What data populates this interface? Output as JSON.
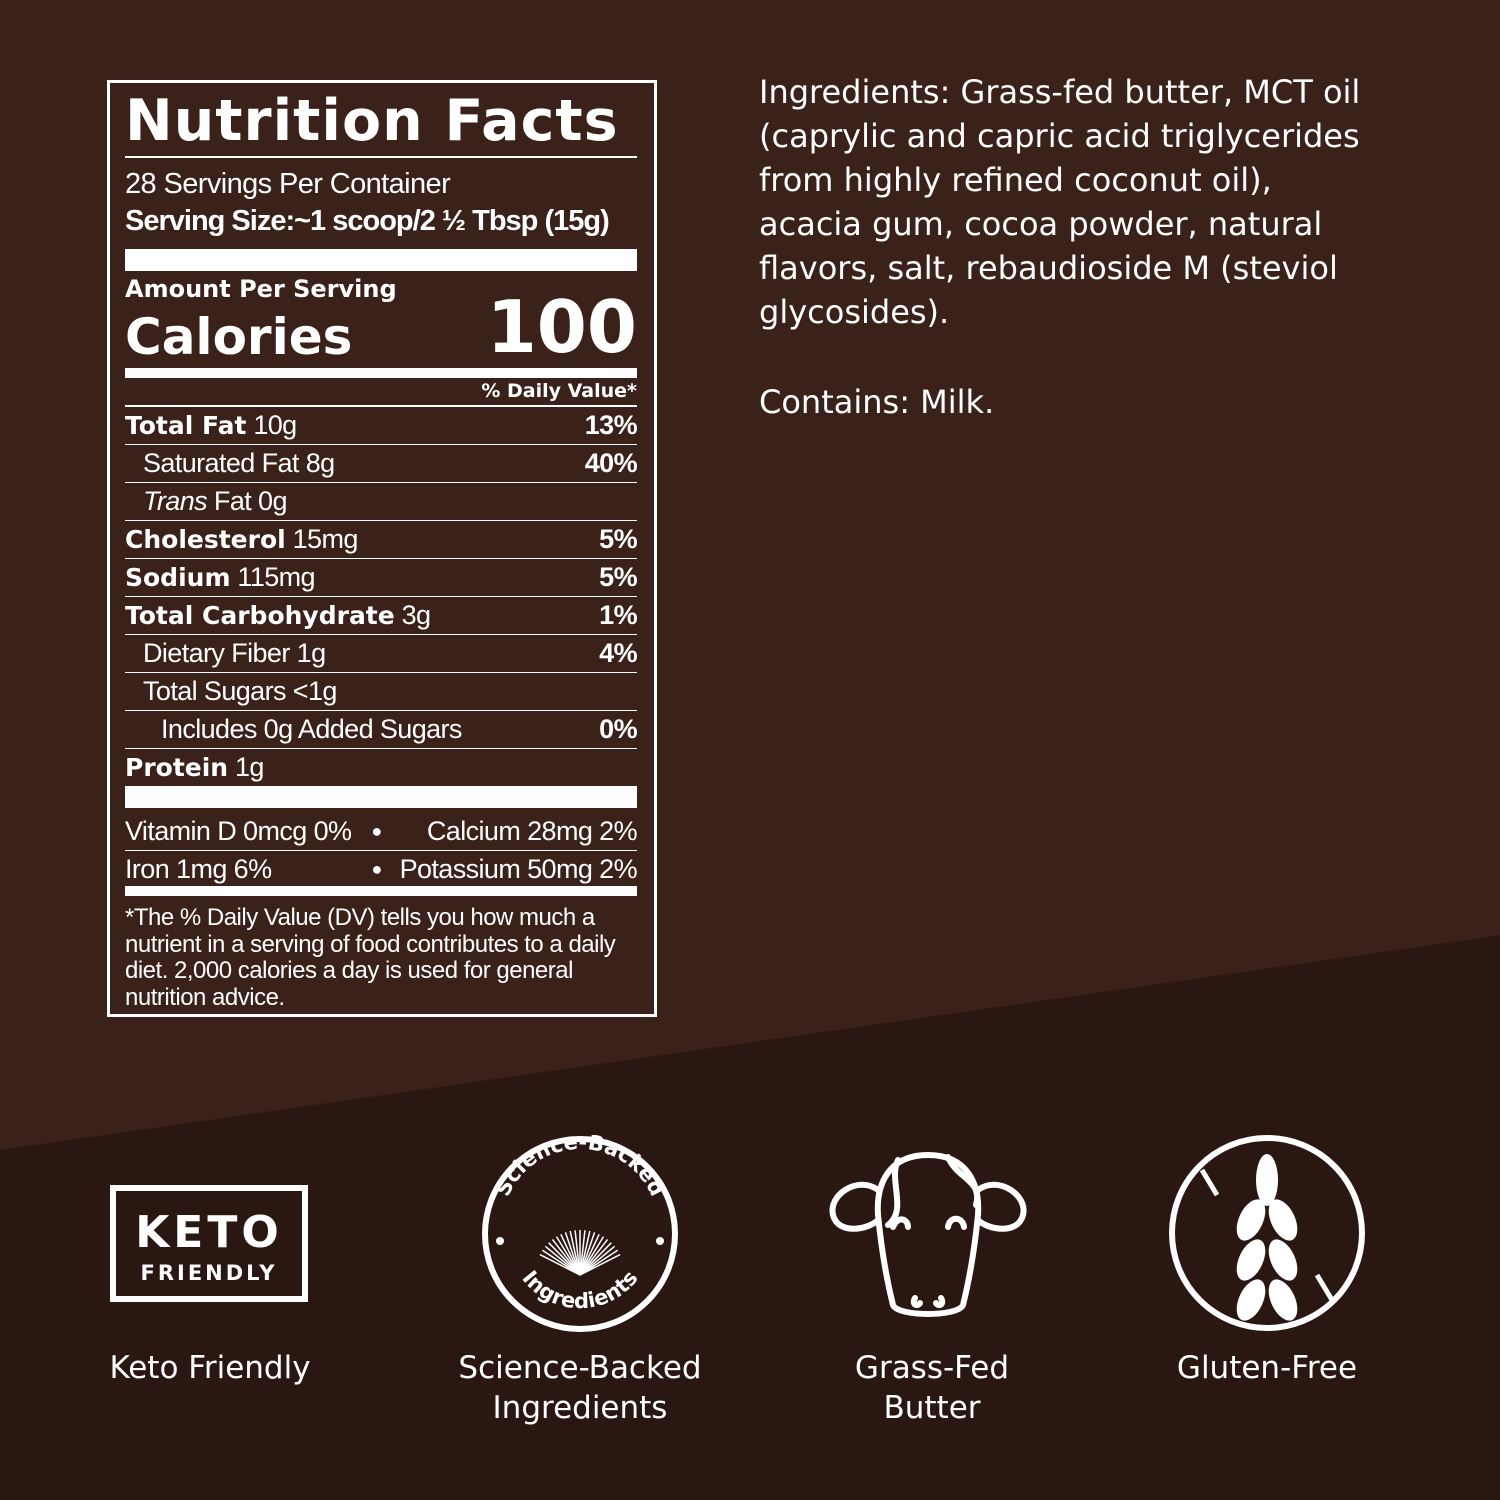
{
  "colors": {
    "background_upper": "#3a2119",
    "background_lower": "#2a1712",
    "text": "#ffffff"
  },
  "nutrition": {
    "title": "Nutrition Facts",
    "servings_per_container": "28 Servings Per Container",
    "serving_size": "Serving Size:~1 scoop/2 ½ Tbsp (15g)",
    "amount_per_serving": "Amount Per Serving",
    "calories_label": "Calories",
    "calories_value": "100",
    "daily_value_header": "% Daily Value*",
    "rows": [
      {
        "name": "Total Fat",
        "amount": "10g",
        "dv": "13%",
        "bold": true,
        "indent": 0
      },
      {
        "name": "Saturated Fat",
        "amount": "8g",
        "dv": "40%",
        "bold": false,
        "indent": 1
      },
      {
        "name": "Trans",
        "amount": "Fat 0g",
        "dv": "",
        "bold": false,
        "indent": 1,
        "italic": true
      },
      {
        "name": "Cholesterol",
        "amount": "15mg",
        "dv": "5%",
        "bold": true,
        "indent": 0
      },
      {
        "name": "Sodium",
        "amount": "115mg",
        "dv": "5%",
        "bold": true,
        "indent": 0
      },
      {
        "name": "Total Carbohydrate",
        "amount": "3g",
        "dv": "1%",
        "bold": true,
        "indent": 0
      },
      {
        "name": "Dietary Fiber",
        "amount": "1g",
        "dv": "4%",
        "bold": false,
        "indent": 1
      },
      {
        "name": "Total Sugars",
        "amount": "<1g",
        "dv": "",
        "bold": false,
        "indent": 1
      },
      {
        "name": "Includes 0g Added Sugars",
        "amount": "",
        "dv": "0%",
        "bold": false,
        "indent": 2
      },
      {
        "name": "Protein",
        "amount": "1g",
        "dv": "",
        "bold": true,
        "indent": 0
      }
    ],
    "micros": [
      {
        "left": "Vitamin D 0mcg 0%",
        "right": "Calcium 28mg 2%"
      },
      {
        "left": "Iron 1mg 6%",
        "right": "Potassium 50mg 2%"
      }
    ],
    "footnote": "*The % Daily Value (DV) tells you how much a nutrient in a serving of food contributes to a daily diet. 2,000 calories a day is used for general nutrition advice."
  },
  "ingredients": "Ingredients: Grass-fed butter, MCT oil (caprylic and capric acid triglycerides from highly refined coconut oil), acacia gum, cocoa powder, natural flavors, salt, rebaudioside M (steviol glycosides).",
  "contains": "Contains: Milk.",
  "badges": [
    {
      "icon": "keto-friendly-badge-icon",
      "icon_text_1": "KETO",
      "icon_text_2": "FRIENDLY",
      "label": "Keto Friendly"
    },
    {
      "icon": "science-backed-seal-icon",
      "icon_text_1": "Science-Backed",
      "icon_text_2": "Ingredients",
      "label": "Science-Backed Ingredients"
    },
    {
      "icon": "cow-icon",
      "label": "Grass-Fed Butter"
    },
    {
      "icon": "gluten-free-wheat-icon",
      "label": "Gluten-Free"
    }
  ]
}
